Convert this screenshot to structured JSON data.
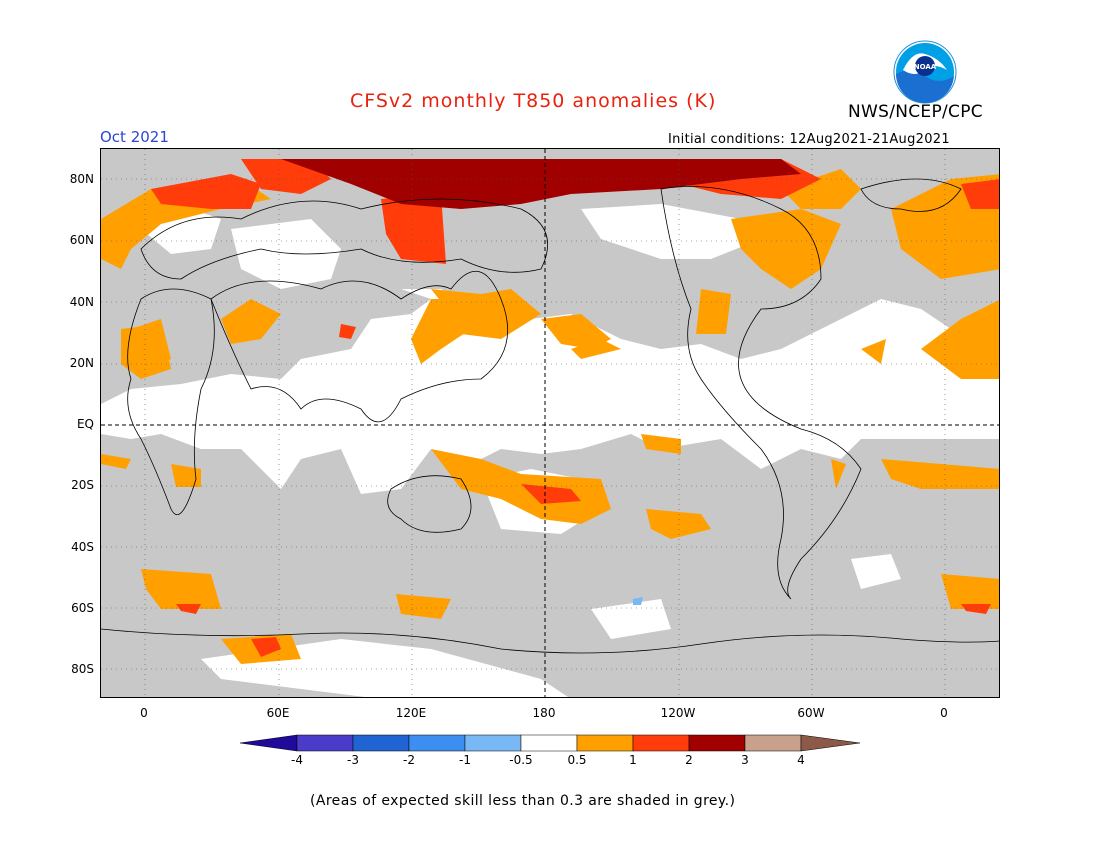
{
  "header": {
    "title": "CFSv2 monthly T850 anomalies (K)",
    "month": "Oct 2021",
    "initial_conditions": "Initial conditions: 12Aug2021-21Aug2021",
    "agency": "NWS/NCEP/CPC",
    "logo_text": "NOAA"
  },
  "map": {
    "lat_labels": [
      "80N",
      "60N",
      "40N",
      "20N",
      "EQ",
      "20S",
      "40S",
      "60S",
      "80S"
    ],
    "lon_labels": [
      "0",
      "60E",
      "120E",
      "180",
      "120W",
      "60W",
      "0"
    ],
    "skill_mask_color": "#c8c8c8"
  },
  "colorbar": {
    "ticks": [
      "-4",
      "-3",
      "-2",
      "-1",
      "-0.5",
      "0.5",
      "1",
      "2",
      "3",
      "4"
    ],
    "colors": [
      "#1f0a9a",
      "#4a3cc8",
      "#1f64d2",
      "#3c8ff0",
      "#78b9f5",
      "#ffffff",
      "#ffa000",
      "#ff3c0a",
      "#a00000",
      "#c8a08c",
      "#8c5a46"
    ]
  },
  "footnote": "(Areas of expected skill less than 0.3 are shaded in grey.)"
}
